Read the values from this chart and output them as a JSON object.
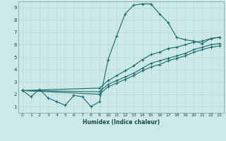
{
  "title": "",
  "xlabel": "Humidex (Indice chaleur)",
  "xlim": [
    -0.5,
    23.5
  ],
  "ylim": [
    0.5,
    9.5
  ],
  "xticks": [
    0,
    1,
    2,
    3,
    4,
    5,
    6,
    7,
    8,
    9,
    10,
    11,
    12,
    13,
    14,
    15,
    16,
    17,
    18,
    19,
    20,
    21,
    22,
    23
  ],
  "yticks": [
    1,
    2,
    3,
    4,
    5,
    6,
    7,
    8,
    9
  ],
  "bg_color": "#cce8e8",
  "line_color": "#1a6b6b",
  "grid_color": "#b8d8d8",
  "line1_x": [
    0,
    1,
    2,
    3,
    4,
    5,
    6,
    7,
    8,
    9,
    10,
    11,
    12,
    13,
    14,
    15,
    16,
    17,
    18,
    19,
    20,
    21,
    22,
    23
  ],
  "line1_y": [
    2.3,
    1.8,
    2.4,
    1.7,
    1.4,
    1.1,
    1.9,
    1.8,
    1.0,
    1.4,
    4.8,
    6.7,
    8.5,
    9.2,
    9.3,
    9.3,
    8.5,
    7.8,
    6.6,
    6.4,
    6.3,
    6.1,
    6.5,
    6.6
  ],
  "line2_x": [
    0,
    9,
    10,
    11,
    12,
    13,
    14,
    15,
    16,
    17,
    18,
    19,
    20,
    21,
    22,
    23
  ],
  "line2_y": [
    2.3,
    2.5,
    3.1,
    3.5,
    3.9,
    4.3,
    4.8,
    5.2,
    5.4,
    5.7,
    5.8,
    6.0,
    6.2,
    6.3,
    6.5,
    6.6
  ],
  "line3_x": [
    0,
    9,
    10,
    11,
    12,
    13,
    14,
    15,
    16,
    17,
    18,
    19,
    20,
    21,
    22,
    23
  ],
  "line3_y": [
    2.3,
    2.2,
    2.8,
    3.1,
    3.4,
    3.7,
    4.1,
    4.5,
    4.7,
    4.9,
    5.1,
    5.3,
    5.6,
    5.8,
    6.0,
    6.1
  ],
  "line4_x": [
    0,
    9,
    10,
    11,
    12,
    13,
    14,
    15,
    16,
    17,
    18,
    19,
    20,
    21,
    22,
    23
  ],
  "line4_y": [
    2.3,
    2.0,
    2.6,
    2.9,
    3.2,
    3.5,
    3.9,
    4.2,
    4.4,
    4.7,
    4.9,
    5.1,
    5.4,
    5.6,
    5.8,
    5.9
  ]
}
